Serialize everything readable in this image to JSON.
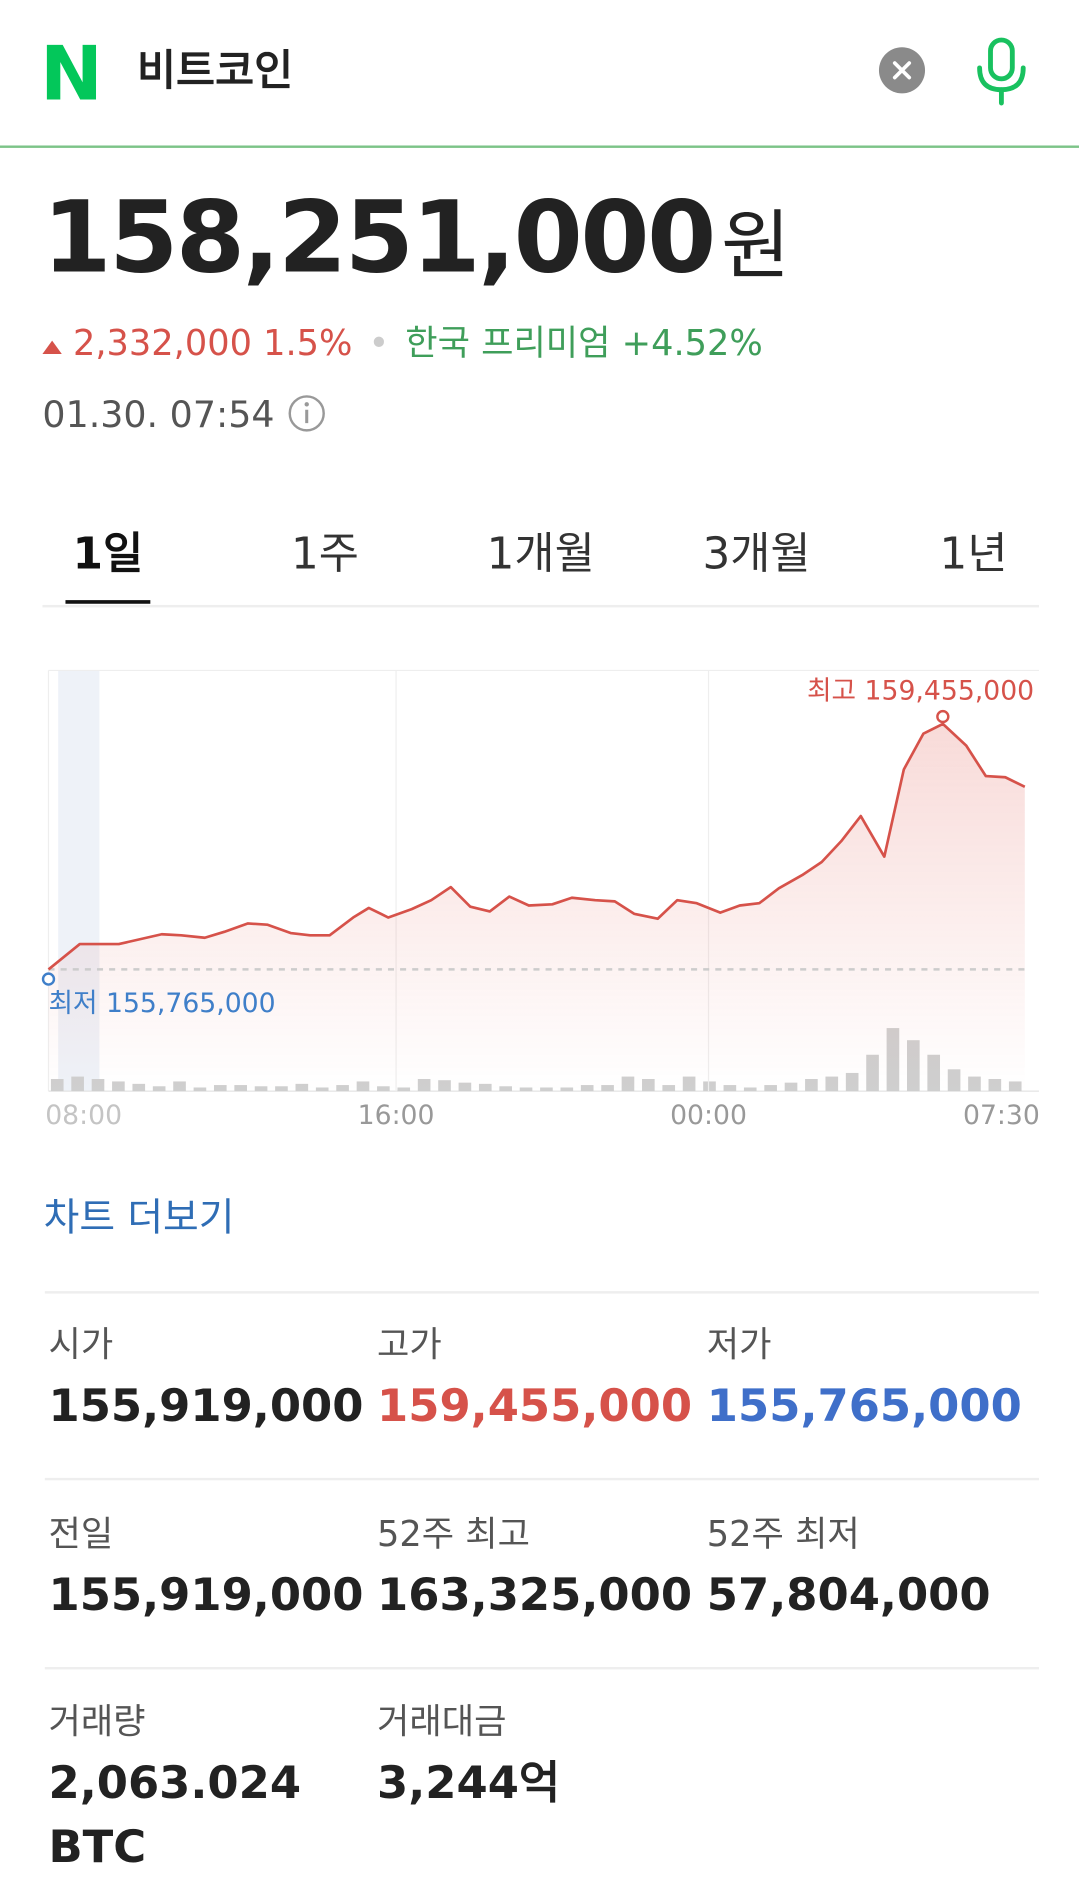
{
  "header": {
    "logo": "N",
    "query": "비트코인"
  },
  "quote": {
    "price": "158,251,000",
    "unit": "원",
    "change": "2,332,000",
    "change_pct": "1.5%",
    "premium": "한국 프리미엄 +4.52%",
    "time": "01.30. 07:54"
  },
  "tabs": {
    "items": [
      "1일",
      "1주",
      "1개월",
      "3개월",
      "1년"
    ],
    "active": 0
  },
  "chart_data": [
    {
      "type": "line",
      "x": [
        -0.9,
        -0.1,
        0.9,
        2.0,
        2.5,
        3.1,
        3.6,
        4.2,
        4.7,
        5.3,
        5.8,
        6.3,
        6.9,
        7.3,
        7.8,
        8.4,
        8.9,
        9.4,
        9.9,
        10.4,
        10.9,
        11.4,
        12.0,
        12.5,
        13.1,
        13.6,
        14.1,
        14.7,
        15.2,
        15.7,
        16.3,
        16.8,
        17.3,
        17.8,
        18.4,
        18.9,
        19.4,
        19.9,
        20.5,
        21.0,
        21.5,
        22.0,
        22.6,
        23.1,
        23.6,
        24.1
      ],
      "series": [
        {
          "color": "#d6524a",
          "values": [
            155340000,
            155765000,
            155765000,
            155930000,
            155910000,
            155870000,
            155970000,
            156110000,
            156090000,
            155950000,
            155910000,
            155910000,
            156210000,
            156370000,
            156210000,
            156350000,
            156500000,
            156720000,
            156390000,
            156310000,
            156560000,
            156410000,
            156430000,
            156540000,
            156500000,
            156480000,
            156270000,
            156190000,
            156500000,
            156450000,
            156290000,
            156410000,
            156450000,
            156700000,
            156920000,
            157140000,
            157490000,
            157910000,
            157230000,
            158690000,
            159290000,
            159455000,
            159090000,
            158580000,
            158560000,
            158400000
          ]
        }
      ],
      "xlim": [
        -0.9,
        24.4
      ],
      "ylim": [
        153300000,
        160350000
      ],
      "xticks": [
        {
          "value": 0,
          "label": "08:00"
        },
        {
          "value": 8,
          "label": "16:00"
        },
        {
          "value": 16,
          "label": "00:00"
        },
        {
          "value": 23.5,
          "label": "07:30"
        }
      ],
      "grid": true,
      "annotations": [
        {
          "text": "최고 159,455,000",
          "color": "#d6524a"
        },
        {
          "text": "최저 155,765,000",
          "color": "#3f7fc9"
        }
      ]
    },
    {
      "type": "bar",
      "color": "#cfcfcf",
      "values": [
        10,
        12,
        10,
        8,
        6,
        4,
        8,
        3,
        5,
        5,
        4,
        4,
        6,
        3,
        5,
        8,
        4,
        3,
        10,
        9,
        7,
        6,
        4,
        3,
        3,
        3,
        5,
        5,
        12,
        10,
        5,
        12,
        8,
        5,
        3,
        5,
        7,
        10,
        12,
        15,
        30,
        52,
        42,
        30,
        18,
        12,
        10,
        8
      ],
      "ylim": [
        0,
        347
      ]
    }
  ],
  "more_link": "차트 더보기",
  "stats": [
    {
      "label": "시가",
      "value": "155,919,000"
    },
    {
      "label": "고가",
      "value": "159,455,000",
      "color": "#d6524a"
    },
    {
      "label": "저가",
      "value": "155,765,000",
      "color": "#3f6fc9"
    },
    {
      "label": "전일",
      "value": "155,919,000"
    },
    {
      "label": "52주 최고",
      "value": "163,325,000"
    },
    {
      "label": "52주 최저",
      "value": "57,804,000"
    },
    {
      "label": "거래량",
      "value": "2,063.024 BTC"
    },
    {
      "label": "거래대금",
      "value": "3,244억"
    }
  ]
}
